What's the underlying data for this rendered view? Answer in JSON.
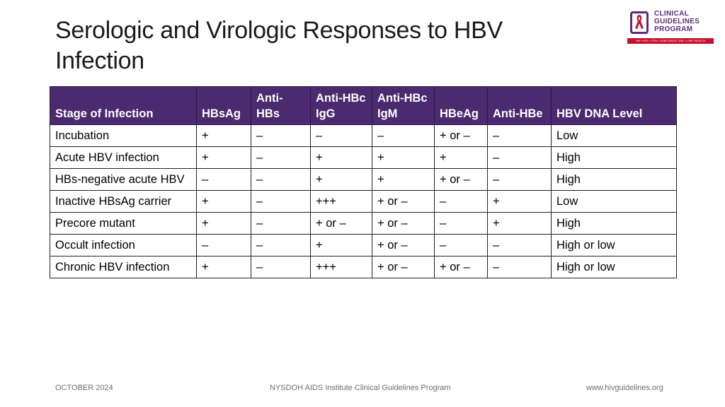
{
  "title_line1": "Serologic and Virologic Responses to HBV",
  "title_line2": "Infection",
  "logo": {
    "line1": "CLINICAL",
    "line2": "GUIDELINES",
    "line3": "PROGRAM",
    "tagline": "HIV • HCV • STIs • SUBSTANCE USE • LGBT HEALTH",
    "brand_purple": "#5b2c7a",
    "brand_red": "#c8102e"
  },
  "table": {
    "header_color": "#4b2a6f",
    "headers": [
      {
        "line1": "",
        "line2": "Stage of Infection"
      },
      {
        "line1": "",
        "line2": "HBsAg"
      },
      {
        "line1": "",
        "line2": "Anti-HBs"
      },
      {
        "line1": "Anti-HBc",
        "line2": "IgG"
      },
      {
        "line1": "Anti-HBc",
        "line2": "IgM"
      },
      {
        "line1": "",
        "line2": "HBeAg"
      },
      {
        "line1": "",
        "line2": "Anti-HBe"
      },
      {
        "line1": "",
        "line2": "HBV DNA Level"
      }
    ],
    "rows": [
      [
        "Incubation",
        "+",
        "–",
        "–",
        "–",
        "+ or –",
        "–",
        "Low"
      ],
      [
        "Acute HBV infection",
        "+",
        "–",
        "+",
        "+",
        "+",
        "–",
        "High"
      ],
      [
        "HBs-negative acute HBV",
        "–",
        "–",
        "+",
        "+",
        "+ or –",
        "–",
        "High"
      ],
      [
        "Inactive HBsAg carrier",
        "+",
        "–",
        "+++",
        "+ or –",
        "–",
        "+",
        "Low"
      ],
      [
        "Precore mutant",
        "+",
        "–",
        "+ or –",
        "+ or –",
        "–",
        "+",
        "High"
      ],
      [
        "Occult infection",
        "–",
        "–",
        "+",
        "+ or –",
        "–",
        "–",
        "High or low"
      ],
      [
        "Chronic HBV infection",
        "+",
        "–",
        "+++",
        "+ or –",
        "+ or –",
        "–",
        "High or low"
      ]
    ]
  },
  "footer": {
    "date": "OCTOBER 2024",
    "program": "NYSDOH AIDS Institute Clinical Guidelines Program",
    "url": "www.hivguidelines.org"
  }
}
